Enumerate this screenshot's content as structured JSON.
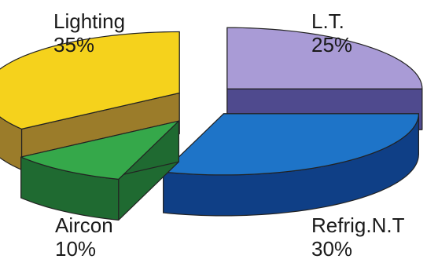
{
  "chart_data": {
    "type": "pie",
    "variant": "3d-exploded",
    "slices": [
      {
        "label": "L.T.",
        "value": 25,
        "value_text": "25%",
        "color": "#a99bd6",
        "side_color": "#4f4a8e"
      },
      {
        "label": "Refrig.N.T",
        "value": 30,
        "value_text": "30%",
        "color": "#1e74c8",
        "side_color": "#0f3f86"
      },
      {
        "label": "Aircon",
        "value": 10,
        "value_text": "10%",
        "color": "#35a84a",
        "side_color": "#1f6a31"
      },
      {
        "label": "Lighting",
        "value": 35,
        "value_text": "35%",
        "color": "#f5d21c",
        "side_color": "#9b7c2a"
      }
    ]
  }
}
